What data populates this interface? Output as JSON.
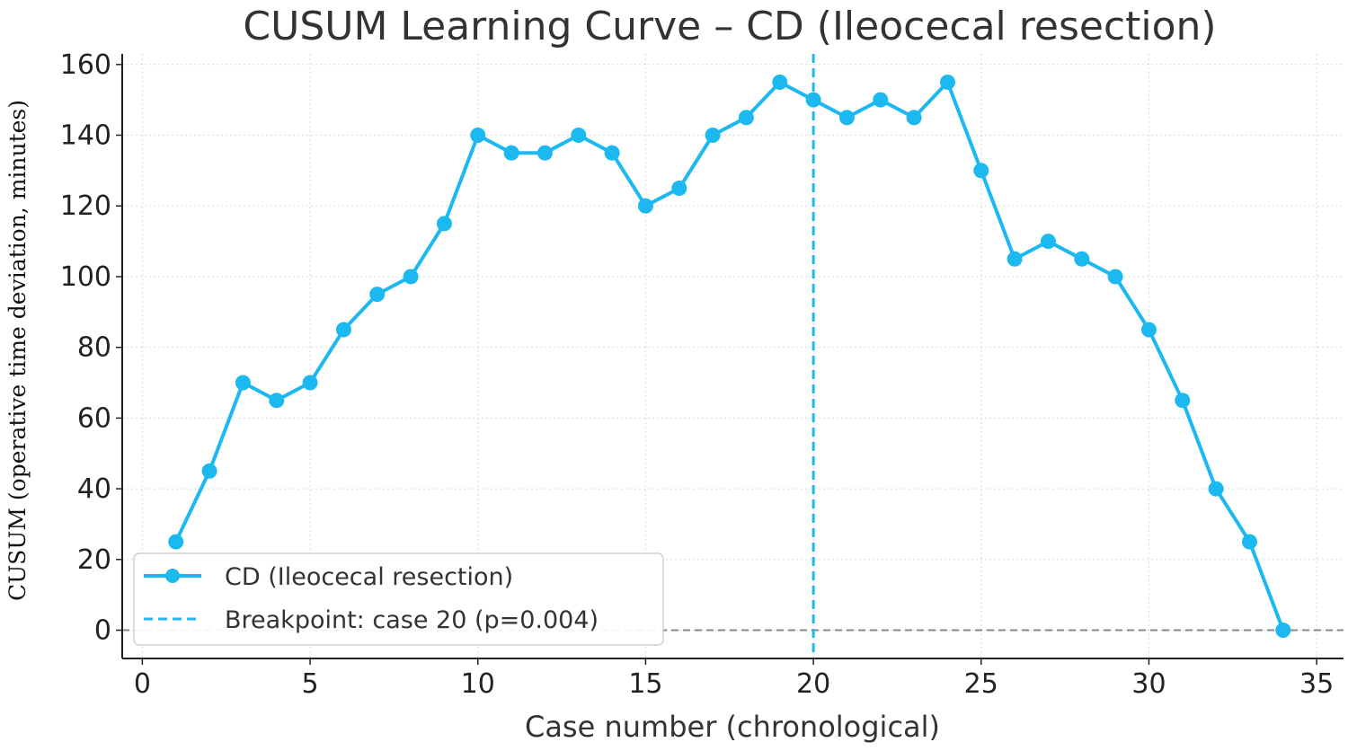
{
  "chart_data": {
    "type": "line",
    "title": "CUSUM Learning Curve – CD (Ileocecal resection)",
    "xlabel": "Case number (chronological)",
    "ylabel": "CUSUM (operative time deviation, minutes)",
    "xlim": [
      -0.6,
      35.8
    ],
    "ylim": [
      -8,
      163
    ],
    "xticks": [
      0,
      5,
      10,
      15,
      20,
      25,
      30,
      35
    ],
    "yticks": [
      0,
      20,
      40,
      60,
      80,
      100,
      120,
      140,
      160
    ],
    "grid": true,
    "series": [
      {
        "name": "CD (Ileocecal resection)",
        "color": "#1cb8f0",
        "x": [
          1,
          2,
          3,
          4,
          5,
          6,
          7,
          8,
          9,
          10,
          11,
          12,
          13,
          14,
          15,
          16,
          17,
          18,
          19,
          20,
          21,
          22,
          23,
          24,
          25,
          26,
          27,
          28,
          29,
          30,
          31,
          32,
          33,
          34
        ],
        "values": [
          25,
          45,
          70,
          65,
          70,
          85,
          95,
          100,
          115,
          140,
          135,
          135,
          140,
          135,
          120,
          125,
          140,
          145,
          155,
          150,
          145,
          150,
          145,
          155,
          130,
          105,
          110,
          105,
          100,
          85,
          65,
          40,
          25,
          0
        ]
      }
    ],
    "breakpoint": {
      "x": 20,
      "label": "Breakpoint: case 20 (p=0.004)",
      "color": "#1cb8f0"
    },
    "reference_line": {
      "y": 0,
      "color": "#888888"
    },
    "legend": {
      "placement": "lower-left"
    }
  }
}
